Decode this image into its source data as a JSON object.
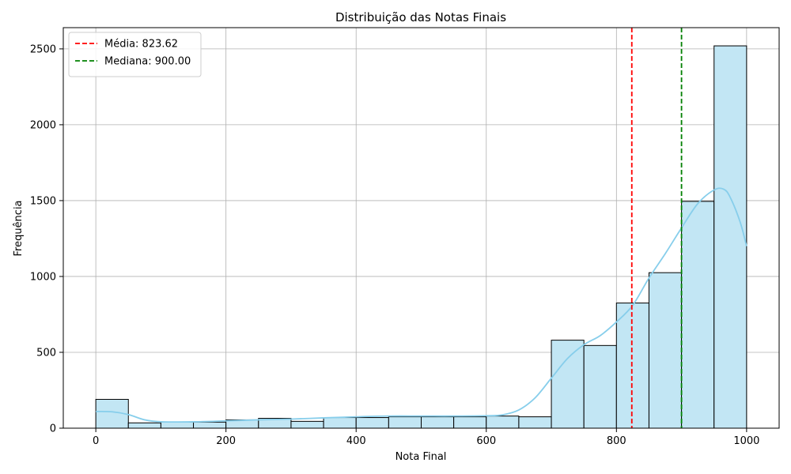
{
  "chart_data": {
    "type": "bar",
    "title": "Distribuição das Notas Finais",
    "xlabel": "Nota Final",
    "ylabel": "Frequência",
    "xlim": [
      -50,
      1050
    ],
    "ylim": [
      0,
      2640
    ],
    "xticks": [
      0,
      200,
      400,
      600,
      800,
      1000
    ],
    "yticks": [
      0,
      500,
      1000,
      1500,
      2000,
      2500
    ],
    "grid": true,
    "legend_position": "top-left",
    "bin_width": 50,
    "bins": [
      {
        "x0": 0,
        "x1": 50,
        "count": 190
      },
      {
        "x0": 50,
        "x1": 100,
        "count": 35
      },
      {
        "x0": 100,
        "x1": 150,
        "count": 40
      },
      {
        "x0": 150,
        "x1": 200,
        "count": 40
      },
      {
        "x0": 200,
        "x1": 250,
        "count": 55
      },
      {
        "x0": 250,
        "x1": 300,
        "count": 65
      },
      {
        "x0": 300,
        "x1": 350,
        "count": 45
      },
      {
        "x0": 350,
        "x1": 400,
        "count": 70
      },
      {
        "x0": 400,
        "x1": 450,
        "count": 70
      },
      {
        "x0": 450,
        "x1": 500,
        "count": 75
      },
      {
        "x0": 500,
        "x1": 550,
        "count": 75
      },
      {
        "x0": 550,
        "x1": 600,
        "count": 75
      },
      {
        "x0": 600,
        "x1": 650,
        "count": 80
      },
      {
        "x0": 650,
        "x1": 700,
        "count": 75
      },
      {
        "x0": 700,
        "x1": 750,
        "count": 580
      },
      {
        "x0": 750,
        "x1": 800,
        "count": 545
      },
      {
        "x0": 800,
        "x1": 850,
        "count": 825
      },
      {
        "x0": 850,
        "x1": 900,
        "count": 1025
      },
      {
        "x0": 900,
        "x1": 950,
        "count": 1495
      },
      {
        "x0": 950,
        "x1": 1000,
        "count": 2520
      }
    ],
    "kde": {
      "x": [
        0,
        25,
        50,
        75,
        100,
        150,
        200,
        250,
        300,
        350,
        400,
        450,
        500,
        550,
        600,
        625,
        650,
        675,
        700,
        725,
        750,
        775,
        800,
        825,
        850,
        875,
        900,
        925,
        950,
        965,
        975,
        990,
        1000
      ],
      "y": [
        110,
        108,
        90,
        55,
        42,
        42,
        48,
        55,
        60,
        68,
        75,
        80,
        80,
        80,
        82,
        88,
        120,
        200,
        330,
        460,
        550,
        610,
        700,
        810,
        990,
        1150,
        1320,
        1480,
        1570,
        1575,
        1520,
        1360,
        1200
      ]
    },
    "lines": [
      {
        "label": "Média: 823.62",
        "value": 823.62,
        "color": "#ff0000"
      },
      {
        "label": "Mediana: 900.00",
        "value": 900.0,
        "color": "#008000"
      }
    ],
    "colors": {
      "bar_fill": "#c2e6f4",
      "bar_edge": "#000000",
      "kde": "#87ceeb",
      "grid": "#b0b0b0"
    }
  }
}
